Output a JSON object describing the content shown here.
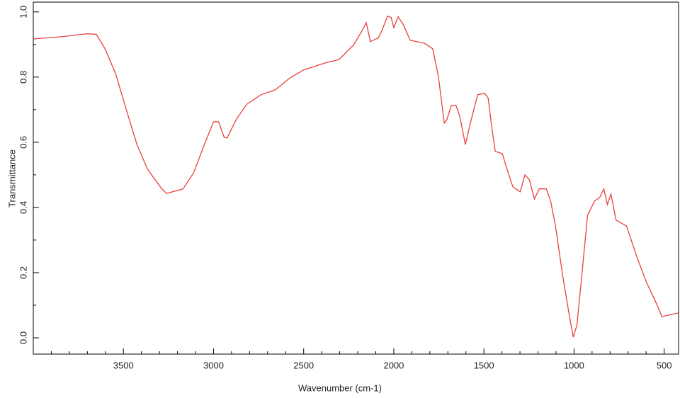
{
  "chart_data": {
    "type": "line",
    "xlabel": "Wavenumber (cm-1)",
    "ylabel": "Transmittance",
    "xlim": [
      4000,
      420
    ],
    "ylim": [
      -0.05,
      1.03
    ],
    "xticks": [
      3500,
      3000,
      2500,
      2000,
      1500,
      1000,
      500
    ],
    "xminorticks": [
      3900,
      3800,
      3700,
      3600,
      3400,
      3300,
      3200,
      3100,
      2900,
      2800,
      2700,
      2600,
      2400,
      2300,
      2200,
      2100,
      1900,
      1800,
      1700,
      1600,
      1400,
      1300,
      1200,
      1100,
      900,
      800,
      700,
      600
    ],
    "yticks": [
      {
        "value": 0,
        "label": "0.0"
      },
      0.2,
      0.4,
      0.6,
      0.8,
      {
        "value": 1,
        "label": "1.0"
      }
    ],
    "yminorticks": [
      0.1,
      0.3,
      0.5,
      0.7,
      0.9
    ],
    "series": [
      {
        "color": "#e8403e",
        "x": [
          4000,
          3839,
          3700,
          3650,
          3602,
          3543,
          3484,
          3425,
          3366,
          3287,
          3260,
          3169,
          3110,
          3051,
          3000,
          2972,
          2941,
          2925,
          2874,
          2815,
          2736,
          2657,
          2579,
          2500,
          2382,
          2303,
          2224,
          2177,
          2153,
          2130,
          2087,
          2067,
          2035,
          2015,
          2000,
          1976,
          1949,
          1909,
          1831,
          1784,
          1752,
          1720,
          1705,
          1681,
          1655,
          1634,
          1603,
          1575,
          1535,
          1496,
          1476,
          1457,
          1437,
          1398,
          1366,
          1339,
          1299,
          1272,
          1248,
          1220,
          1193,
          1154,
          1130,
          1103,
          1063,
          1024,
          1004,
          984,
          957,
          925,
          886,
          858,
          835,
          815,
          795,
          767,
          709,
          650,
          598,
          551,
          512,
          473,
          420
        ],
        "values": [
          0.917,
          0.924,
          0.933,
          0.931,
          0.887,
          0.81,
          0.7,
          0.593,
          0.517,
          0.457,
          0.443,
          0.457,
          0.507,
          0.593,
          0.663,
          0.663,
          0.615,
          0.613,
          0.67,
          0.717,
          0.746,
          0.761,
          0.796,
          0.822,
          0.843,
          0.854,
          0.898,
          0.941,
          0.967,
          0.909,
          0.92,
          0.941,
          0.987,
          0.983,
          0.952,
          0.985,
          0.963,
          0.913,
          0.904,
          0.887,
          0.8,
          0.659,
          0.67,
          0.713,
          0.713,
          0.68,
          0.593,
          0.659,
          0.746,
          0.75,
          0.735,
          0.648,
          0.572,
          0.565,
          0.507,
          0.463,
          0.448,
          0.5,
          0.485,
          0.426,
          0.457,
          0.457,
          0.42,
          0.343,
          0.191,
          0.061,
          0.002,
          0.039,
          0.191,
          0.376,
          0.42,
          0.43,
          0.457,
          0.409,
          0.441,
          0.361,
          0.343,
          0.246,
          0.17,
          0.115,
          0.065,
          0.07,
          0.076
        ]
      }
    ]
  }
}
